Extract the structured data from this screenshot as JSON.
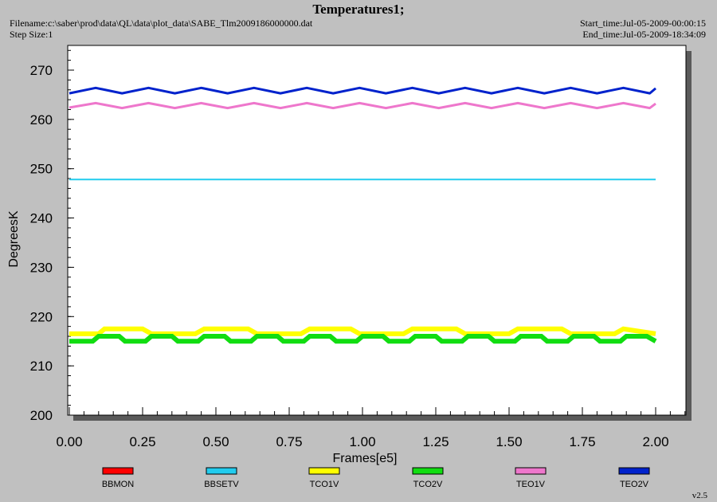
{
  "header": {
    "title": "Temperatures1;",
    "filename": "Filename:c:\\saber\\prod\\data\\QL\\data\\plot_data\\SABE_Tlm2009186000000.dat",
    "step_size": "Step Size:1",
    "start_time": "Start_time:Jul-05-2009-00:00:15",
    "end_time": "End_time:Jul-05-2009-18:34:09"
  },
  "footer": {
    "version": "v2.5"
  },
  "chart_data": {
    "type": "line",
    "xlabel": "Frames[e5]",
    "ylabel": "DegreesK",
    "xlim": [
      0,
      2.1
    ],
    "ylim": [
      200,
      275
    ],
    "xticks": [
      "0.00",
      "0.25",
      "0.50",
      "0.75",
      "1.00",
      "1.25",
      "1.50",
      "1.75",
      "2.00"
    ],
    "yticks": [
      "200",
      "210",
      "220",
      "230",
      "240",
      "250",
      "260",
      "270"
    ],
    "grid": false,
    "legend_position": "bottom",
    "series": [
      {
        "name": "BBMON",
        "color": "#ff0000",
        "x": [],
        "y": []
      },
      {
        "name": "BBSETV",
        "color": "#22ccee",
        "x": [
          0.0,
          0.25,
          0.5,
          0.75,
          1.0,
          1.25,
          1.5,
          1.75,
          2.0
        ],
        "y": [
          247.8,
          247.8,
          247.8,
          247.8,
          247.8,
          247.8,
          247.8,
          247.8,
          247.8
        ]
      },
      {
        "name": "TCO1V",
        "color": "#ffff00",
        "x": [
          0.0,
          0.1,
          0.12,
          0.25,
          0.28,
          0.43,
          0.46,
          0.61,
          0.64,
          0.79,
          0.82,
          0.96,
          0.99,
          1.14,
          1.17,
          1.32,
          1.35,
          1.5,
          1.53,
          1.68,
          1.71,
          1.86,
          1.89,
          2.0
        ],
        "y": [
          216.5,
          216.5,
          217.5,
          217.5,
          216.5,
          216.5,
          217.5,
          217.5,
          216.5,
          216.5,
          217.5,
          217.5,
          216.5,
          216.5,
          217.5,
          217.5,
          216.5,
          216.5,
          217.5,
          217.5,
          216.5,
          216.5,
          217.5,
          216.5
        ]
      },
      {
        "name": "TCO2V",
        "color": "#11dd11",
        "x": [
          0.0,
          0.08,
          0.1,
          0.17,
          0.19,
          0.26,
          0.28,
          0.35,
          0.37,
          0.44,
          0.46,
          0.53,
          0.55,
          0.62,
          0.64,
          0.71,
          0.73,
          0.8,
          0.82,
          0.89,
          0.91,
          0.98,
          1.0,
          1.07,
          1.09,
          1.16,
          1.18,
          1.25,
          1.27,
          1.34,
          1.36,
          1.43,
          1.45,
          1.52,
          1.54,
          1.61,
          1.63,
          1.7,
          1.72,
          1.79,
          1.81,
          1.88,
          1.9,
          1.97,
          2.0
        ],
        "y": [
          215.0,
          215.0,
          216.0,
          216.0,
          215.0,
          215.0,
          216.0,
          216.0,
          215.0,
          215.0,
          216.0,
          216.0,
          215.0,
          215.0,
          216.0,
          216.0,
          215.0,
          215.0,
          216.0,
          216.0,
          215.0,
          215.0,
          216.0,
          216.0,
          215.0,
          215.0,
          216.0,
          216.0,
          215.0,
          215.0,
          216.0,
          216.0,
          215.0,
          215.0,
          216.0,
          216.0,
          215.0,
          215.0,
          216.0,
          216.0,
          215.0,
          215.0,
          216.0,
          216.0,
          215.0
        ]
      },
      {
        "name": "TEO1V",
        "color": "#ee77cc",
        "x": [
          0.0,
          0.09,
          0.18,
          0.27,
          0.36,
          0.45,
          0.54,
          0.63,
          0.72,
          0.81,
          0.9,
          0.99,
          1.08,
          1.17,
          1.26,
          1.35,
          1.44,
          1.53,
          1.62,
          1.71,
          1.8,
          1.89,
          1.98,
          2.0
        ],
        "y": [
          262.4,
          263.3,
          262.3,
          263.3,
          262.3,
          263.3,
          262.3,
          263.3,
          262.3,
          263.3,
          262.3,
          263.3,
          262.3,
          263.3,
          262.3,
          263.3,
          262.3,
          263.3,
          262.3,
          263.3,
          262.3,
          263.3,
          262.3,
          263.2
        ]
      },
      {
        "name": "TEO2V",
        "color": "#0022cc",
        "x": [
          0.0,
          0.09,
          0.18,
          0.27,
          0.36,
          0.45,
          0.54,
          0.63,
          0.72,
          0.81,
          0.9,
          0.99,
          1.08,
          1.17,
          1.26,
          1.35,
          1.44,
          1.53,
          1.62,
          1.71,
          1.8,
          1.89,
          1.98,
          2.0
        ],
        "y": [
          265.3,
          266.4,
          265.3,
          266.4,
          265.3,
          266.4,
          265.3,
          266.4,
          265.3,
          266.4,
          265.3,
          266.4,
          265.3,
          266.4,
          265.3,
          266.4,
          265.3,
          266.4,
          265.3,
          266.4,
          265.3,
          266.4,
          265.3,
          266.3
        ]
      }
    ]
  }
}
